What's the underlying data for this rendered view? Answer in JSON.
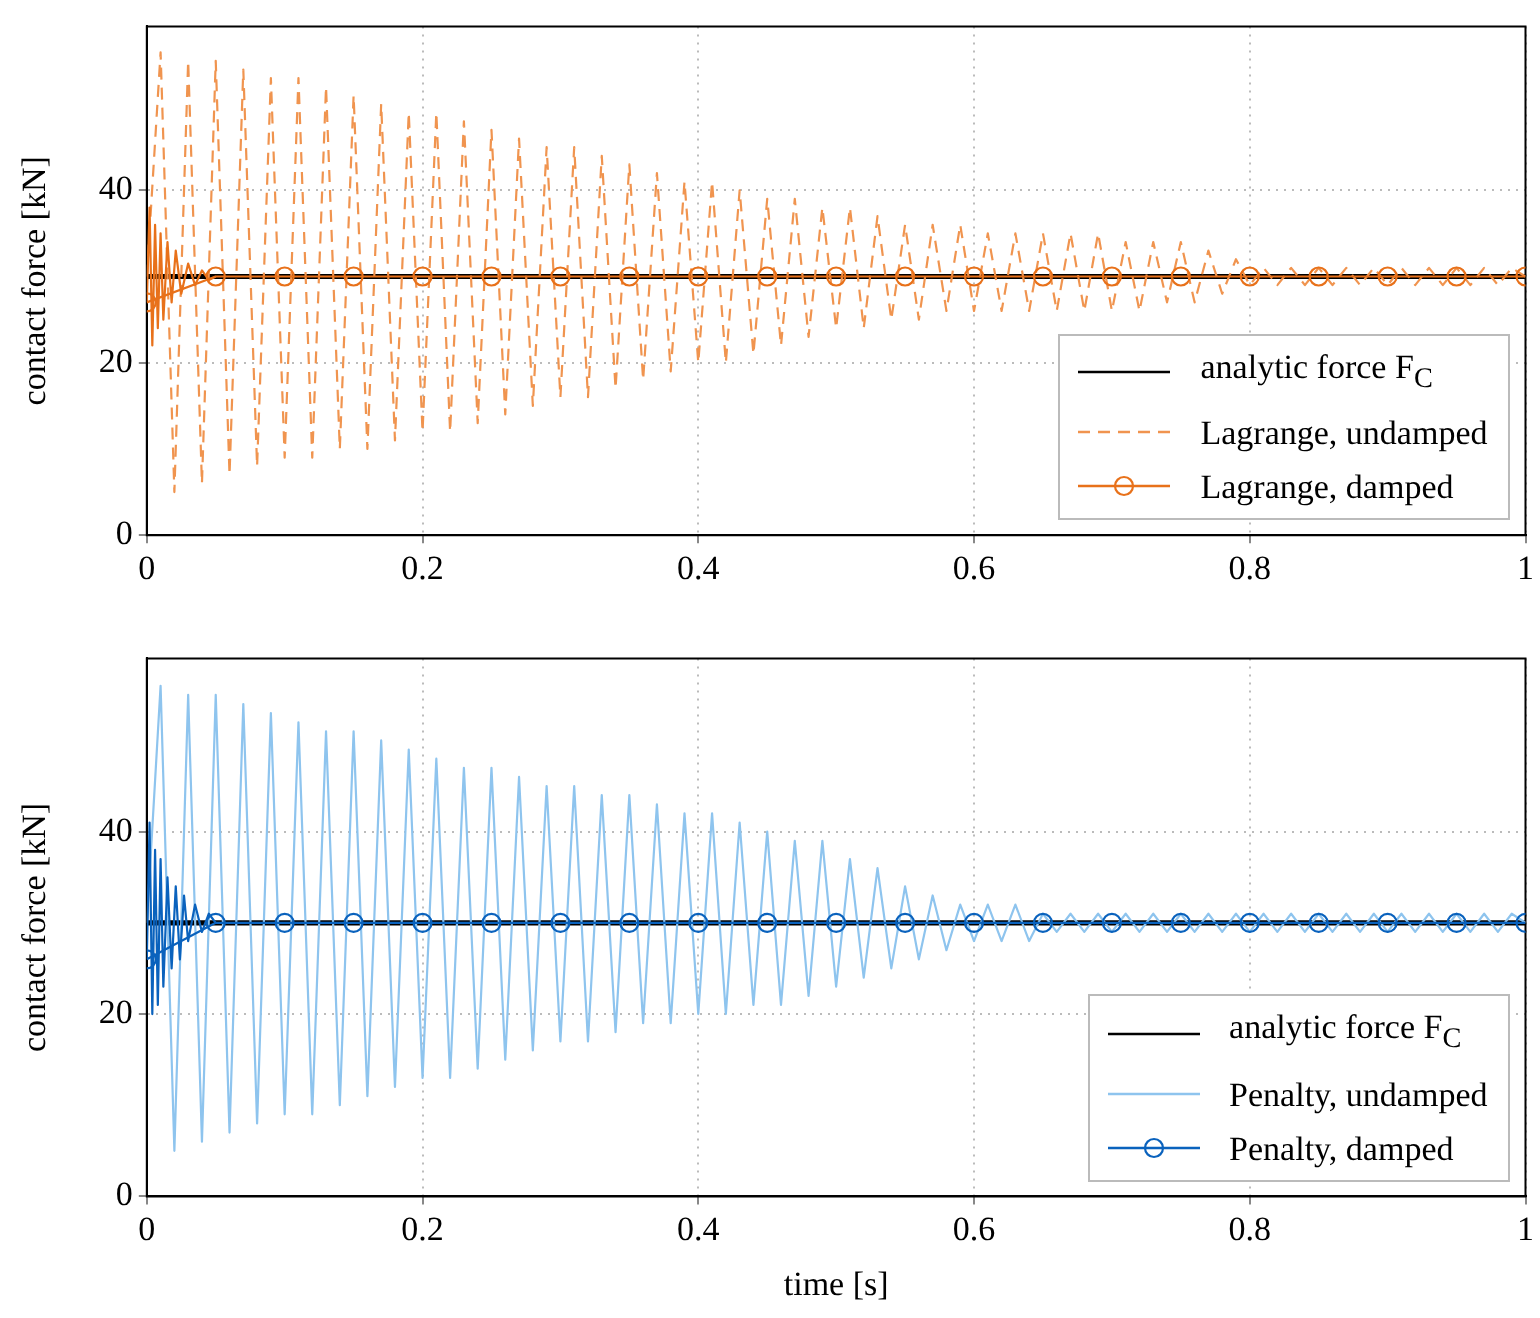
{
  "chart_data": [
    {
      "type": "line",
      "ylabel": "contact force [kN]",
      "xlim": [
        0,
        1
      ],
      "xticks": [
        0,
        0.2,
        0.4,
        0.6,
        0.8,
        1
      ],
      "ylim": [
        0,
        59
      ],
      "yticks": [
        0,
        20,
        40
      ],
      "grid": true,
      "legend": "bottom right",
      "series": [
        {
          "name": "analytic force F$_{C}$",
          "color": "#000000",
          "x": [
            0,
            1
          ],
          "values": [
            30,
            30
          ],
          "marker": "none",
          "line_style": "solid"
        },
        {
          "name": "Lagrange, undamped",
          "color": "#f0944f",
          "marker": "none",
          "line_style": "dashed",
          "x": [
            0,
            0.01,
            0.02,
            0.03,
            0.04,
            0.05,
            0.06,
            0.07,
            0.08,
            0.09,
            0.1,
            0.11,
            0.12,
            0.13,
            0.14,
            0.15,
            0.16,
            0.17,
            0.18,
            0.19,
            0.2,
            0.21,
            0.22,
            0.23,
            0.24,
            0.25,
            0.26,
            0.27,
            0.28,
            0.29,
            0.3,
            0.31,
            0.32,
            0.33,
            0.34,
            0.35,
            0.36,
            0.37,
            0.38,
            0.39,
            0.4,
            0.41,
            0.42,
            0.43,
            0.44,
            0.45,
            0.46,
            0.47,
            0.48,
            0.49,
            0.5,
            0.51,
            0.52,
            0.53,
            0.54,
            0.55,
            0.56,
            0.57,
            0.58,
            0.59,
            0.6,
            0.61,
            0.62,
            0.63,
            0.64,
            0.65,
            0.66,
            0.67,
            0.68,
            0.69,
            0.7,
            0.71,
            0.72,
            0.73,
            0.74,
            0.75,
            0.76,
            0.77,
            0.78,
            0.79,
            0.8,
            0.81,
            0.82,
            0.83,
            0.84,
            0.85,
            0.86,
            0.87,
            0.88,
            0.89,
            0.9,
            0.91,
            0.92,
            0.93,
            0.94,
            0.95,
            0.96,
            0.97,
            0.98,
            0.99,
            1
          ],
          "values": [
            30,
            56,
            5,
            55,
            6,
            55,
            7,
            54,
            8,
            53,
            9,
            53,
            9,
            52,
            10,
            51,
            10,
            50,
            11,
            49,
            12,
            49,
            12,
            48,
            13,
            47,
            14,
            46,
            15,
            45,
            16,
            45,
            16,
            44,
            17,
            43,
            18,
            42,
            19,
            41,
            20,
            41,
            20,
            40,
            21,
            39,
            22,
            39,
            23,
            38,
            24,
            38,
            24,
            37,
            25,
            36,
            25,
            36,
            26,
            36,
            26,
            35,
            26,
            35,
            26,
            35,
            26,
            35,
            26,
            35,
            26,
            34,
            26,
            34,
            27,
            34,
            27,
            33,
            28,
            32,
            29,
            31,
            29,
            31,
            29,
            31,
            29,
            31,
            29,
            31,
            29,
            31,
            29,
            31,
            29,
            31,
            29,
            31,
            29,
            31,
            30
          ]
        },
        {
          "name": "Lagrange, damped",
          "color": "#e8711a",
          "marker": "circle",
          "line_style": "solid",
          "x": [
            0,
            0.05,
            0.1,
            0.15,
            0.2,
            0.25,
            0.3,
            0.35,
            0.4,
            0.45,
            0.5,
            0.55,
            0.6,
            0.65,
            0.7,
            0.75,
            0.8,
            0.85,
            0.9,
            0.95,
            1
          ],
          "values": [
            27,
            30,
            30,
            30,
            30,
            30,
            30,
            30,
            30,
            30,
            30,
            30,
            30,
            30,
            30,
            30,
            30,
            30,
            30,
            30,
            30
          ]
        },
        {
          "color": "#e8711a",
          "marker": "none",
          "line_style": "solid",
          "x": [
            0,
            0.002,
            0.004,
            0.006,
            0.008,
            0.01,
            0.012,
            0.015,
            0.018,
            0.021,
            0.025,
            0.03,
            0.035,
            0.04,
            0.045,
            0.05
          ],
          "values": [
            27,
            38,
            22,
            36,
            24,
            35,
            25,
            34,
            27,
            33,
            28,
            31.5,
            29,
            30.7,
            29.6,
            30
          ]
        }
      ]
    },
    {
      "type": "line",
      "xlabel": "time [s]",
      "ylabel": "contact force [kN]",
      "xlim": [
        0,
        1
      ],
      "xticks": [
        0,
        0.2,
        0.4,
        0.6,
        0.8,
        1
      ],
      "ylim": [
        0,
        59
      ],
      "yticks": [
        0,
        20,
        40
      ],
      "grid": true,
      "legend": "bottom right",
      "series": [
        {
          "name": "analytic force F$_{C}$",
          "color": "#000000",
          "x": [
            0,
            1
          ],
          "values": [
            30,
            30
          ],
          "marker": "none",
          "line_style": "solid"
        },
        {
          "name": "Penalty, undamped",
          "color": "#8ec4ee",
          "marker": "none",
          "line_style": "solid",
          "x": [
            0,
            0.01,
            0.02,
            0.03,
            0.04,
            0.05,
            0.06,
            0.07,
            0.08,
            0.09,
            0.1,
            0.11,
            0.12,
            0.13,
            0.14,
            0.15,
            0.16,
            0.17,
            0.18,
            0.19,
            0.2,
            0.21,
            0.22,
            0.23,
            0.24,
            0.25,
            0.26,
            0.27,
            0.28,
            0.29,
            0.3,
            0.31,
            0.32,
            0.33,
            0.34,
            0.35,
            0.36,
            0.37,
            0.38,
            0.39,
            0.4,
            0.41,
            0.42,
            0.43,
            0.44,
            0.45,
            0.46,
            0.47,
            0.48,
            0.49,
            0.5,
            0.51,
            0.52,
            0.53,
            0.54,
            0.55,
            0.56,
            0.57,
            0.58,
            0.59,
            0.6,
            0.61,
            0.62,
            0.63,
            0.64,
            0.65,
            0.66,
            0.67,
            0.68,
            0.69,
            0.7,
            0.71,
            0.72,
            0.73,
            0.74,
            0.75,
            0.76,
            0.77,
            0.78,
            0.79,
            0.8,
            0.81,
            0.82,
            0.83,
            0.84,
            0.85,
            0.86,
            0.87,
            0.88,
            0.89,
            0.9,
            0.91,
            0.92,
            0.93,
            0.94,
            0.95,
            0.96,
            0.97,
            0.98,
            0.99,
            1
          ],
          "values": [
            30,
            56,
            5,
            55,
            6,
            55,
            7,
            54,
            8,
            53,
            9,
            52,
            9,
            51,
            10,
            51,
            11,
            50,
            12,
            49,
            13,
            48,
            13,
            47,
            14,
            47,
            15,
            46,
            16,
            45,
            17,
            45,
            17,
            44,
            18,
            44,
            19,
            43,
            19,
            42,
            20,
            42,
            20,
            41,
            21,
            40,
            21,
            39,
            22,
            39,
            23,
            37,
            24,
            36,
            25,
            34,
            26,
            33,
            27,
            32,
            28,
            32,
            28,
            32,
            28,
            31,
            29,
            31,
            29,
            31,
            29,
            31,
            29,
            31,
            29,
            31,
            29,
            31,
            29,
            31,
            29,
            31,
            29,
            31,
            29,
            31,
            29,
            31,
            29,
            31,
            29,
            31,
            29,
            31,
            29,
            31,
            29,
            31,
            29,
            31,
            30
          ]
        },
        {
          "name": "Penalty, damped",
          "color": "#0a62bd",
          "marker": "circle",
          "line_style": "solid",
          "x": [
            0,
            0.05,
            0.1,
            0.15,
            0.2,
            0.25,
            0.3,
            0.35,
            0.4,
            0.45,
            0.5,
            0.55,
            0.6,
            0.65,
            0.7,
            0.75,
            0.8,
            0.85,
            0.9,
            0.95,
            1
          ],
          "values": [
            26,
            30,
            30,
            30,
            30,
            30,
            30,
            30,
            30,
            30,
            30,
            30,
            30,
            30,
            30,
            30,
            30,
            30,
            30,
            30,
            30
          ]
        },
        {
          "color": "#0a62bd",
          "marker": "none",
          "line_style": "solid",
          "x": [
            0,
            0.002,
            0.004,
            0.006,
            0.008,
            0.01,
            0.012,
            0.015,
            0.018,
            0.021,
            0.024,
            0.027,
            0.03,
            0.035,
            0.04,
            0.045,
            0.05
          ],
          "values": [
            26,
            41,
            20,
            38,
            21,
            37,
            23,
            35,
            25,
            34,
            26,
            33,
            28,
            32,
            29,
            31,
            30
          ]
        }
      ]
    }
  ]
}
